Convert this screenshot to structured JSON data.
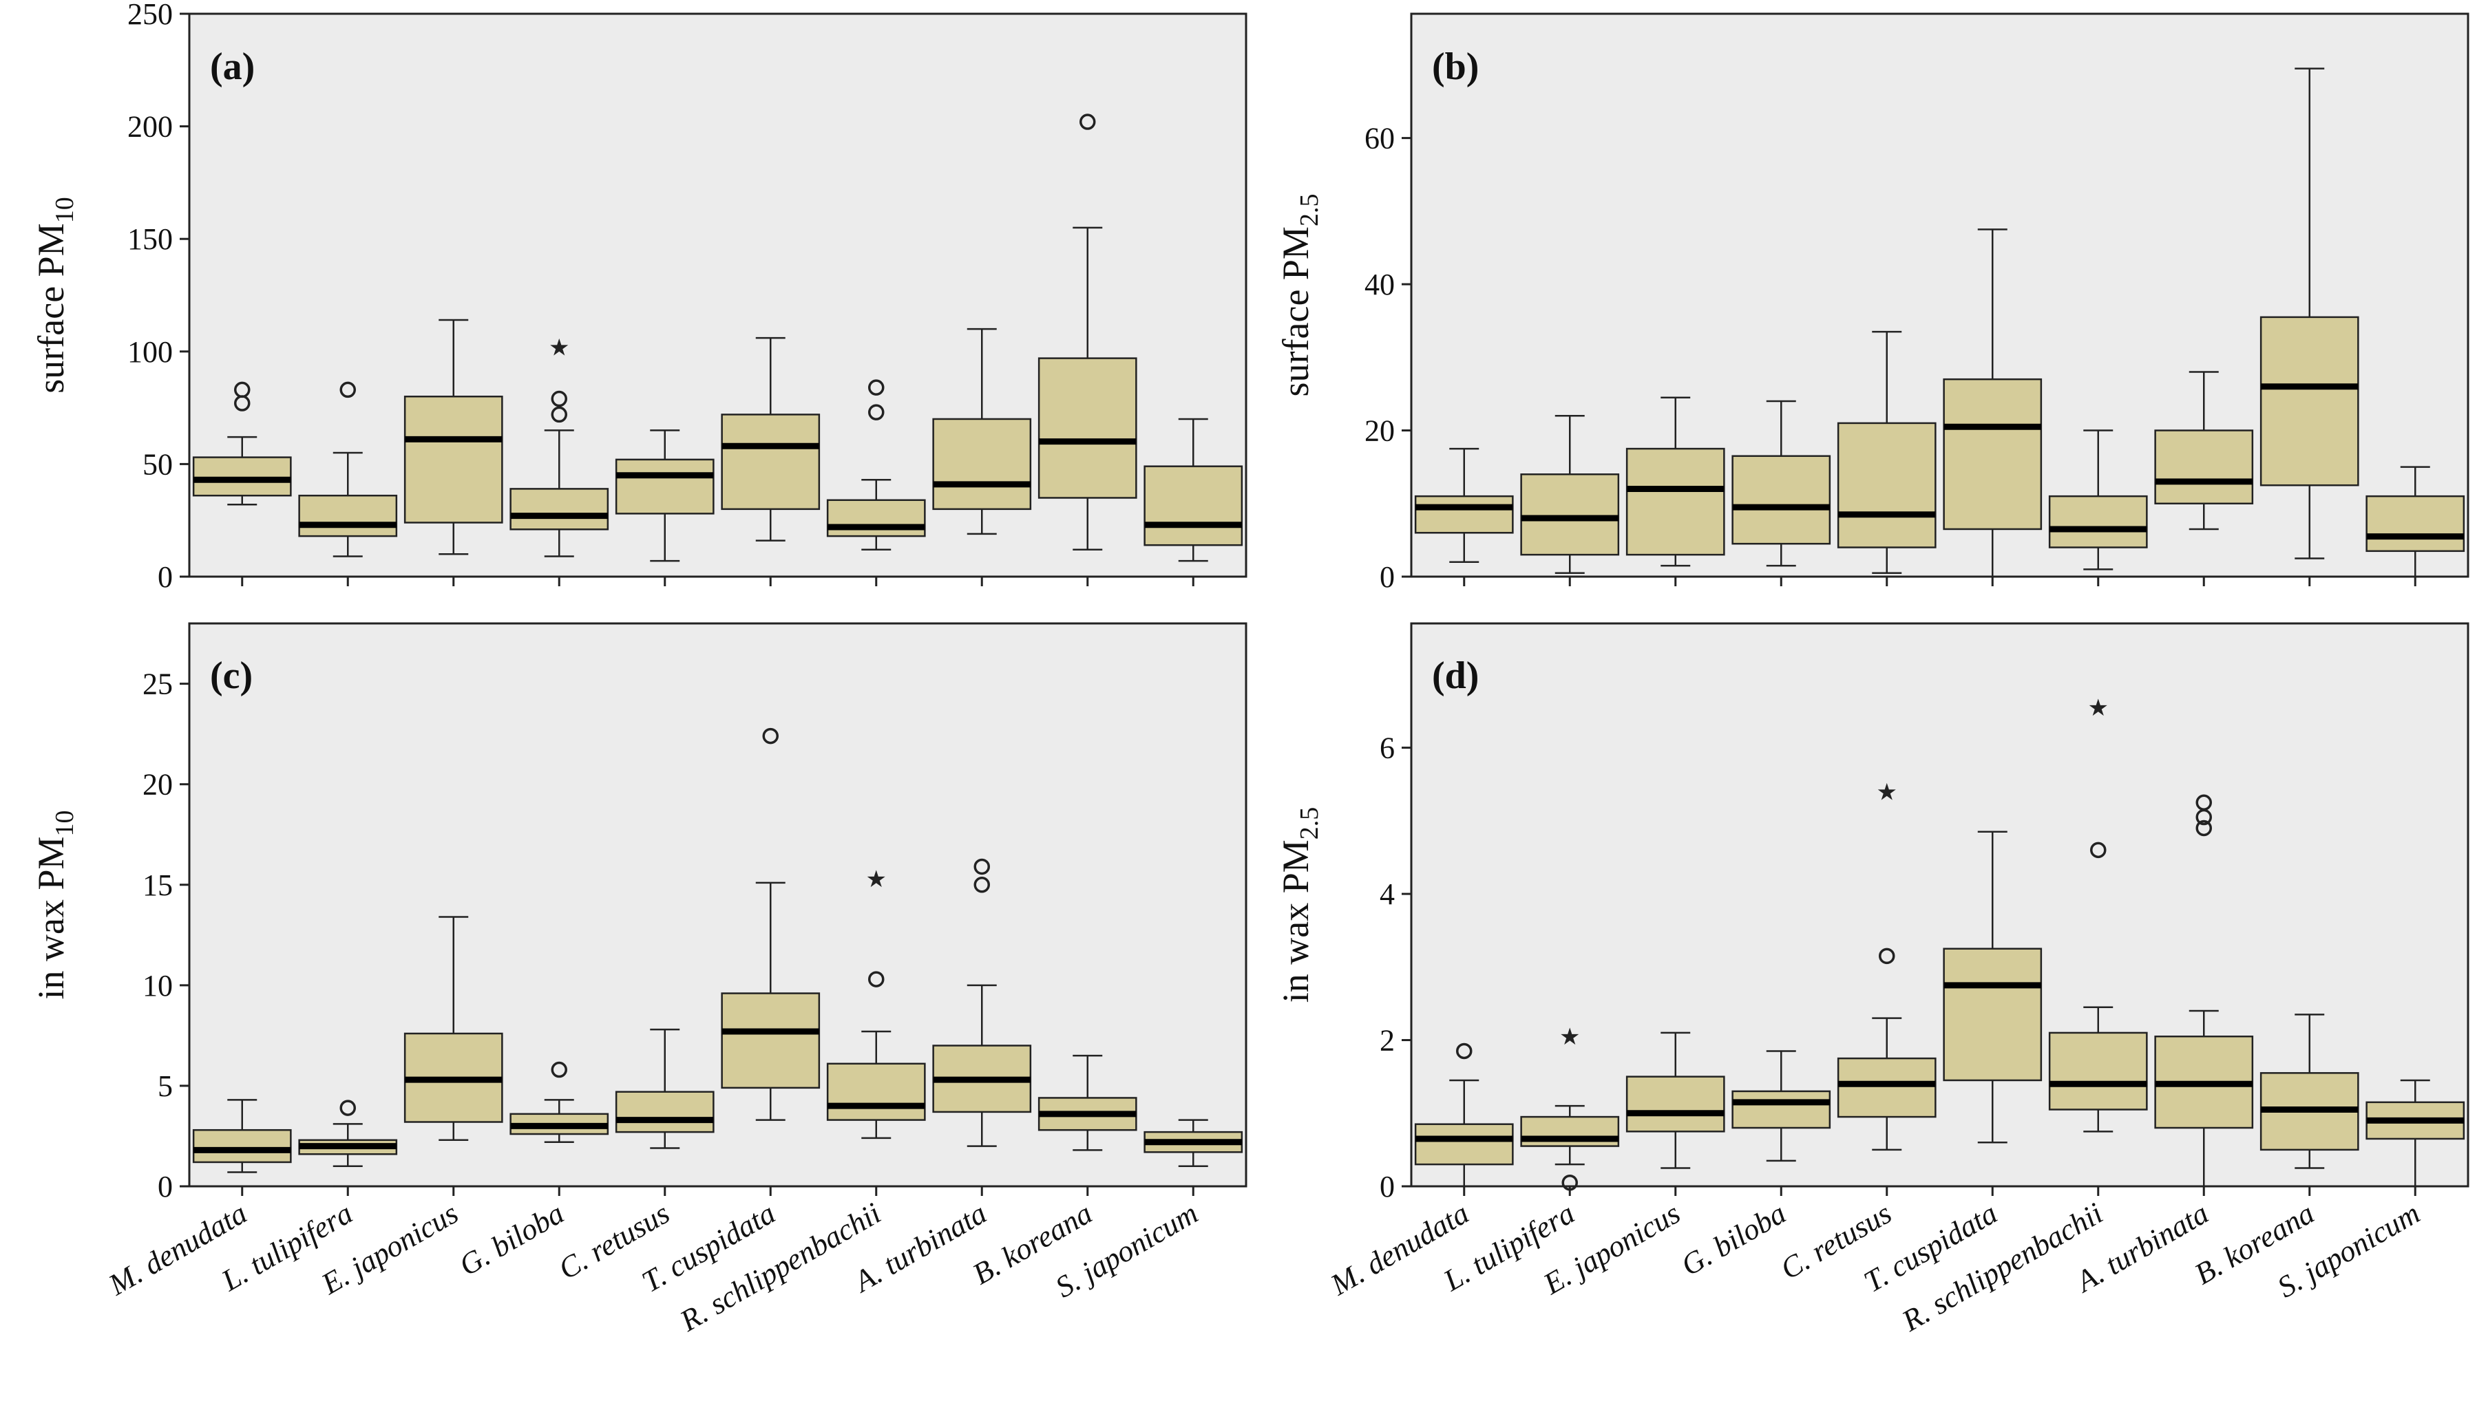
{
  "colors": {
    "box_fill": "#d5cc9a",
    "plot_bg": "#ececec",
    "median": "#000000"
  },
  "categories": [
    "M. denudata",
    "L. tulipifera",
    "E. japonicus",
    "G. biloba",
    "C. retusus",
    "T. cuspidata",
    "R. schlippenbachii",
    "A. turbinata",
    "B. koreana",
    "S. japonicum"
  ],
  "chart_data": [
    {
      "type": "box",
      "panel": "(a)",
      "ylabel": {
        "main": "surface PM",
        "sub": "10"
      },
      "ylim": [
        0,
        250
      ],
      "yticks": [
        0,
        50,
        100,
        150,
        200,
        250
      ],
      "boxes": [
        {
          "min": 32,
          "q1": 36,
          "median": 43,
          "q3": 53,
          "max": 62,
          "circles": [
            77,
            83
          ],
          "stars": []
        },
        {
          "min": 9,
          "q1": 18,
          "median": 23,
          "q3": 36,
          "max": 55,
          "circles": [
            83
          ],
          "stars": []
        },
        {
          "min": 10,
          "q1": 24,
          "median": 61,
          "q3": 80,
          "max": 114,
          "circles": [],
          "stars": []
        },
        {
          "min": 9,
          "q1": 21,
          "median": 27,
          "q3": 39,
          "max": 65,
          "circles": [
            72,
            79
          ],
          "stars": [
            102
          ]
        },
        {
          "min": 7,
          "q1": 28,
          "median": 45,
          "q3": 52,
          "max": 65,
          "circles": [],
          "stars": []
        },
        {
          "min": 16,
          "q1": 30,
          "median": 58,
          "q3": 72,
          "max": 106,
          "circles": [],
          "stars": []
        },
        {
          "min": 12,
          "q1": 18,
          "median": 22,
          "q3": 34,
          "max": 43,
          "circles": [
            73,
            84
          ],
          "stars": []
        },
        {
          "min": 19,
          "q1": 30,
          "median": 41,
          "q3": 70,
          "max": 110,
          "circles": [],
          "stars": []
        },
        {
          "min": 12,
          "q1": 35,
          "median": 60,
          "q3": 97,
          "max": 155,
          "circles": [
            202
          ],
          "stars": []
        },
        {
          "min": 7,
          "q1": 14,
          "median": 23,
          "q3": 49,
          "max": 70,
          "circles": [],
          "stars": []
        }
      ]
    },
    {
      "type": "box",
      "panel": "(b)",
      "ylabel": {
        "main": "surface PM",
        "sub": "2.5"
      },
      "ylim": [
        0,
        77
      ],
      "yticks": [
        0,
        20,
        40,
        60
      ],
      "boxes": [
        {
          "min": 2,
          "q1": 6,
          "median": 9.5,
          "q3": 11,
          "max": 17.5,
          "circles": [],
          "stars": []
        },
        {
          "min": 0.5,
          "q1": 3,
          "median": 8,
          "q3": 14,
          "max": 22,
          "circles": [],
          "stars": []
        },
        {
          "min": 1.5,
          "q1": 3,
          "median": 12,
          "q3": 17.5,
          "max": 24.5,
          "circles": [],
          "stars": []
        },
        {
          "min": 1.5,
          "q1": 4.5,
          "median": 9.5,
          "q3": 16.5,
          "max": 24,
          "circles": [],
          "stars": []
        },
        {
          "min": 0.5,
          "q1": 4,
          "median": 8.5,
          "q3": 21,
          "max": 33.5,
          "circles": [],
          "stars": []
        },
        {
          "min": 0,
          "q1": 6.5,
          "median": 20.5,
          "q3": 27,
          "max": 47.5,
          "circles": [],
          "stars": []
        },
        {
          "min": 1,
          "q1": 4,
          "median": 6.5,
          "q3": 11,
          "max": 20,
          "circles": [],
          "stars": []
        },
        {
          "min": 6.5,
          "q1": 10,
          "median": 13,
          "q3": 20,
          "max": 28,
          "circles": [],
          "stars": []
        },
        {
          "min": 2.5,
          "q1": 12.5,
          "median": 26,
          "q3": 35.5,
          "max": 69.5,
          "circles": [],
          "stars": []
        },
        {
          "min": 0,
          "q1": 3.5,
          "median": 5.5,
          "q3": 11,
          "max": 15,
          "circles": [],
          "stars": []
        }
      ]
    },
    {
      "type": "box",
      "panel": "(c)",
      "ylabel": {
        "main": "in wax PM",
        "sub": "10"
      },
      "ylim": [
        0,
        28
      ],
      "yticks": [
        0,
        5,
        10,
        15,
        20,
        25
      ],
      "boxes": [
        {
          "min": 0.7,
          "q1": 1.2,
          "median": 1.8,
          "q3": 2.8,
          "max": 4.3,
          "circles": [],
          "stars": []
        },
        {
          "min": 1.0,
          "q1": 1.6,
          "median": 2.0,
          "q3": 2.3,
          "max": 3.1,
          "circles": [
            3.9
          ],
          "stars": []
        },
        {
          "min": 2.3,
          "q1": 3.2,
          "median": 5.3,
          "q3": 7.6,
          "max": 13.4,
          "circles": [],
          "stars": []
        },
        {
          "min": 2.2,
          "q1": 2.6,
          "median": 3.0,
          "q3": 3.6,
          "max": 4.3,
          "circles": [
            5.8
          ],
          "stars": []
        },
        {
          "min": 1.9,
          "q1": 2.7,
          "median": 3.3,
          "q3": 4.7,
          "max": 7.8,
          "circles": [],
          "stars": []
        },
        {
          "min": 3.3,
          "q1": 4.9,
          "median": 7.7,
          "q3": 9.6,
          "max": 15.1,
          "circles": [
            22.4
          ],
          "stars": []
        },
        {
          "min": 2.4,
          "q1": 3.3,
          "median": 4.0,
          "q3": 6.1,
          "max": 7.7,
          "circles": [
            10.3
          ],
          "stars": [
            15.3
          ]
        },
        {
          "min": 2.0,
          "q1": 3.7,
          "median": 5.3,
          "q3": 7.0,
          "max": 10.0,
          "circles": [
            15.0,
            15.9
          ],
          "stars": []
        },
        {
          "min": 1.8,
          "q1": 2.8,
          "median": 3.6,
          "q3": 4.4,
          "max": 6.5,
          "circles": [],
          "stars": []
        },
        {
          "min": 1.0,
          "q1": 1.7,
          "median": 2.2,
          "q3": 2.7,
          "max": 3.3,
          "circles": [],
          "stars": []
        }
      ]
    },
    {
      "type": "box",
      "panel": "(d)",
      "ylabel": {
        "main": "in wax PM",
        "sub": "2.5"
      },
      "ylim": [
        0,
        7.7
      ],
      "yticks": [
        0,
        2,
        4,
        6
      ],
      "boxes": [
        {
          "min": 0,
          "q1": 0.3,
          "median": 0.65,
          "q3": 0.85,
          "max": 1.45,
          "circles": [
            1.85
          ],
          "stars": []
        },
        {
          "min": 0.3,
          "q1": 0.55,
          "median": 0.65,
          "q3": 0.95,
          "max": 1.1,
          "circles": [
            0.05
          ],
          "stars": [
            2.05
          ]
        },
        {
          "min": 0.25,
          "q1": 0.75,
          "median": 1.0,
          "q3": 1.5,
          "max": 2.1,
          "circles": [],
          "stars": []
        },
        {
          "min": 0.35,
          "q1": 0.8,
          "median": 1.15,
          "q3": 1.3,
          "max": 1.85,
          "circles": [],
          "stars": []
        },
        {
          "min": 0.5,
          "q1": 0.95,
          "median": 1.4,
          "q3": 1.75,
          "max": 2.3,
          "circles": [
            3.15
          ],
          "stars": [
            5.4
          ]
        },
        {
          "min": 0.6,
          "q1": 1.45,
          "median": 2.75,
          "q3": 3.25,
          "max": 4.85,
          "circles": [],
          "stars": []
        },
        {
          "min": 0.75,
          "q1": 1.05,
          "median": 1.4,
          "q3": 2.1,
          "max": 2.45,
          "circles": [
            4.6
          ],
          "stars": [
            6.55
          ]
        },
        {
          "min": 0,
          "q1": 0.8,
          "median": 1.4,
          "q3": 2.05,
          "max": 2.4,
          "circles": [
            4.9,
            5.05,
            5.25
          ],
          "stars": []
        },
        {
          "min": 0.25,
          "q1": 0.5,
          "median": 1.05,
          "q3": 1.55,
          "max": 2.35,
          "circles": [],
          "stars": []
        },
        {
          "min": 0,
          "q1": 0.65,
          "median": 0.9,
          "q3": 1.15,
          "max": 1.45,
          "circles": [],
          "stars": []
        }
      ]
    }
  ]
}
